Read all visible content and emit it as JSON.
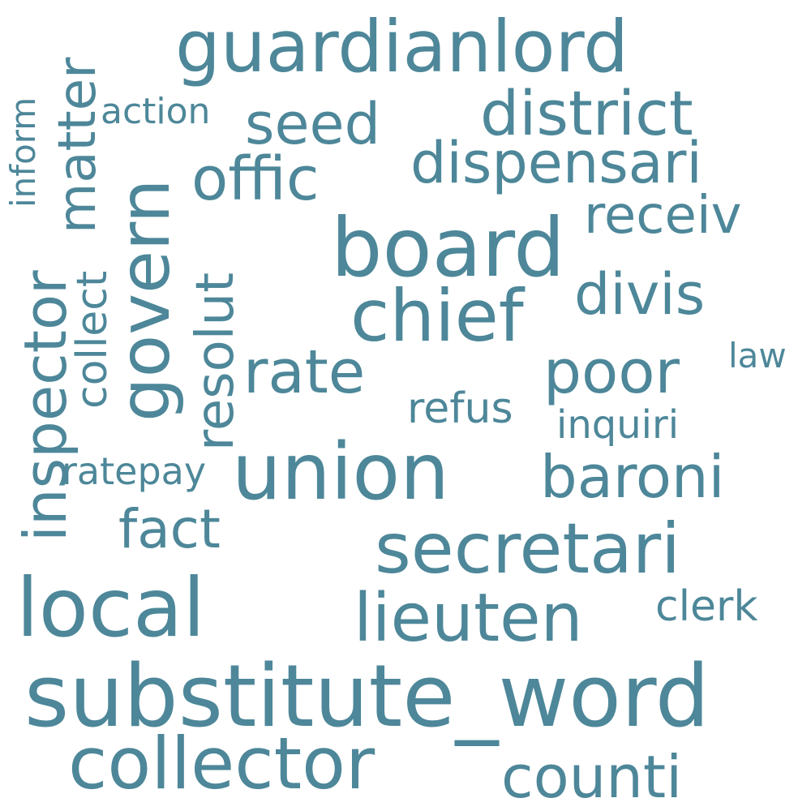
{
  "color": "#4d8799",
  "background": "#ffffff",
  "words": [
    {
      "id": "substitute_word",
      "text": "substitute_word"
    },
    {
      "id": "guardianlord",
      "text": "guardianlord"
    },
    {
      "id": "board",
      "text": "board"
    },
    {
      "id": "union",
      "text": "union"
    },
    {
      "id": "local",
      "text": "local"
    },
    {
      "id": "secretari",
      "text": "secretari"
    },
    {
      "id": "collector",
      "text": "collector"
    },
    {
      "id": "chief",
      "text": "chief"
    },
    {
      "id": "lieuten",
      "text": "lieuten"
    },
    {
      "id": "govern",
      "text": "govern"
    },
    {
      "id": "district",
      "text": "district"
    },
    {
      "id": "offic",
      "text": "offic"
    },
    {
      "id": "dispensari",
      "text": "dispensari"
    },
    {
      "id": "baroni",
      "text": "baroni"
    },
    {
      "id": "counti",
      "text": "counti"
    },
    {
      "id": "poor",
      "text": "poor"
    },
    {
      "id": "rate",
      "text": "rate"
    },
    {
      "id": "inspector",
      "text": "inspector"
    },
    {
      "id": "seed",
      "text": "seed"
    },
    {
      "id": "matter",
      "text": "matter"
    },
    {
      "id": "resolut",
      "text": "resolut"
    },
    {
      "id": "divis",
      "text": "divis"
    },
    {
      "id": "receiv",
      "text": "receiv"
    },
    {
      "id": "fact",
      "text": "fact"
    },
    {
      "id": "collect",
      "text": "collect"
    },
    {
      "id": "clerk",
      "text": "clerk"
    },
    {
      "id": "refus",
      "text": "refus"
    },
    {
      "id": "inquiri",
      "text": "inquiri"
    },
    {
      "id": "ratepay",
      "text": "ratepay"
    },
    {
      "id": "action",
      "text": "action"
    },
    {
      "id": "inform",
      "text": "inform"
    },
    {
      "id": "law",
      "text": "law"
    }
  ]
}
